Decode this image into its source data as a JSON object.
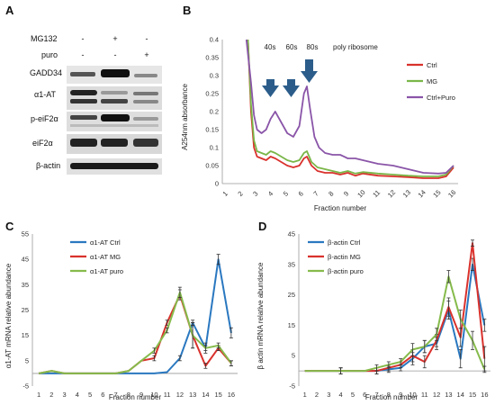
{
  "panels": {
    "a": "A",
    "b": "B",
    "c": "C",
    "d": "D"
  },
  "colors": {
    "ctrl": "#d9312c",
    "mg": "#7ab648",
    "puro": "#8a55a8",
    "blue": "#2a78c0",
    "red": "#d9312c",
    "green": "#86bb4c",
    "arrow": "#2c5d8a"
  },
  "blot": {
    "treatments": [
      {
        "name": "MG132",
        "signs": [
          "-",
          "+",
          "-"
        ]
      },
      {
        "name": "puro",
        "signs": [
          "-",
          "-",
          "+"
        ]
      }
    ],
    "bands": [
      "GADD34",
      "α1-AT",
      "p-eiF2α",
      "eiF2α",
      "β-actin"
    ]
  },
  "chart_data": [
    {
      "panel": "B",
      "type": "line",
      "ylabel": "A254nm absorbance",
      "xlabel": "Fraction number",
      "ylim": [
        0,
        0.4
      ],
      "yticks": [
        0,
        0.05,
        0.1,
        0.15,
        0.2,
        0.25,
        0.3,
        0.35,
        0.4
      ],
      "xticks": [
        "1",
        "2",
        "3",
        "4",
        "5",
        "6",
        "7",
        "8",
        "9",
        "10",
        "11",
        "12",
        "13",
        "14",
        "15",
        "16"
      ],
      "annotations": [
        "40s",
        "60s",
        "80s",
        "poly ribosome"
      ],
      "legend_position": "top-right",
      "series": [
        {
          "name": "Ctrl",
          "x": [
            2.4,
            2.6,
            2.8,
            3,
            3.3,
            3.6,
            3.9,
            4.2,
            4.6,
            5,
            5.4,
            5.8,
            6.1,
            6.3,
            6.6,
            7,
            7.5,
            8,
            8.5,
            9,
            9.5,
            10,
            11,
            12,
            13,
            14,
            15,
            15.5,
            16
          ],
          "y": [
            0.4,
            0.2,
            0.1,
            0.075,
            0.07,
            0.065,
            0.075,
            0.07,
            0.06,
            0.05,
            0.045,
            0.05,
            0.07,
            0.075,
            0.05,
            0.035,
            0.03,
            0.03,
            0.025,
            0.03,
            0.022,
            0.028,
            0.022,
            0.02,
            0.018,
            0.015,
            0.015,
            0.02,
            0.045
          ]
        },
        {
          "name": "MG",
          "x": [
            2.4,
            2.6,
            2.8,
            3,
            3.3,
            3.6,
            3.9,
            4.2,
            4.6,
            5,
            5.4,
            5.8,
            6.1,
            6.3,
            6.6,
            7,
            7.5,
            8,
            8.5,
            9,
            9.5,
            10,
            11,
            12,
            13,
            14,
            15,
            15.5,
            16
          ],
          "y": [
            0.4,
            0.22,
            0.12,
            0.09,
            0.085,
            0.08,
            0.09,
            0.085,
            0.075,
            0.065,
            0.06,
            0.065,
            0.085,
            0.09,
            0.06,
            0.045,
            0.04,
            0.035,
            0.03,
            0.035,
            0.028,
            0.032,
            0.028,
            0.025,
            0.022,
            0.02,
            0.02,
            0.025,
            0.05
          ]
        },
        {
          "name": "Ctrl+Puro",
          "x": [
            2.3,
            2.6,
            2.8,
            3,
            3.3,
            3.6,
            3.9,
            4.2,
            4.6,
            5,
            5.4,
            5.8,
            6.1,
            6.3,
            6.5,
            6.8,
            7.1,
            7.5,
            8,
            8.5,
            9,
            9.5,
            10,
            11,
            12,
            13,
            14,
            15,
            15.5,
            16
          ],
          "y": [
            0.4,
            0.28,
            0.19,
            0.15,
            0.14,
            0.15,
            0.18,
            0.2,
            0.17,
            0.14,
            0.13,
            0.16,
            0.25,
            0.27,
            0.21,
            0.13,
            0.1,
            0.085,
            0.08,
            0.08,
            0.07,
            0.07,
            0.065,
            0.055,
            0.05,
            0.04,
            0.03,
            0.028,
            0.03,
            0.05
          ]
        }
      ]
    },
    {
      "panel": "C",
      "type": "line",
      "ylabel": "α1-AT mRNA relative abundance",
      "xlabel": "Fraction number",
      "ylim": [
        -5,
        55
      ],
      "yticks": [
        -5,
        5,
        15,
        25,
        35,
        45,
        55
      ],
      "xticks": [
        "1",
        "2",
        "3",
        "4",
        "5",
        "6",
        "7",
        "8",
        "9",
        "10",
        "11",
        "12",
        "13",
        "14",
        "15",
        "16"
      ],
      "legend_position": "top-left",
      "series": [
        {
          "name": "α1-AT Ctrl",
          "values": [
            0,
            0,
            0,
            0,
            0,
            0,
            0,
            0,
            0,
            0,
            0.5,
            6,
            20,
            10,
            45,
            16
          ],
          "errors": [
            0,
            0,
            0,
            0,
            0,
            0,
            0,
            0,
            0,
            0,
            0,
            1,
            1,
            2,
            2,
            2
          ]
        },
        {
          "name": "α1-AT MG",
          "values": [
            0,
            1,
            0,
            0,
            0,
            0,
            0,
            1,
            5,
            6,
            20,
            31,
            15,
            3,
            10,
            4
          ],
          "errors": [
            0,
            0,
            0,
            0,
            0,
            0,
            0,
            0,
            0,
            1,
            1,
            2,
            5,
            1,
            1,
            1
          ]
        },
        {
          "name": "α1-AT puro",
          "values": [
            0,
            1,
            0,
            0,
            0,
            0,
            0,
            1,
            5,
            9,
            17,
            32,
            15,
            10,
            11,
            4
          ],
          "errors": [
            0,
            0,
            0,
            0,
            0,
            0,
            0,
            0,
            0,
            1,
            1,
            2,
            5,
            1,
            1,
            1
          ]
        }
      ]
    },
    {
      "panel": "D",
      "type": "line",
      "ylabel": "β actin mRNA relative abundance",
      "xlabel": "Fraction number",
      "ylim": [
        -5,
        45
      ],
      "yticks": [
        -5,
        5,
        15,
        25,
        35,
        45
      ],
      "xticks": [
        "1",
        "2",
        "3",
        "4",
        "5",
        "6",
        "7",
        "8",
        "9",
        "10",
        "11",
        "12",
        "13",
        "14",
        "15",
        "16"
      ],
      "legend_position": "top-left",
      "series": [
        {
          "name": "β-actin Ctrl",
          "values": [
            0,
            0,
            0,
            0,
            0,
            0,
            0,
            0.5,
            1,
            4,
            8,
            9,
            20,
            4,
            35,
            15
          ],
          "errors": [
            0,
            0,
            0,
            1,
            0,
            0,
            1,
            1,
            1,
            2,
            2,
            2,
            3,
            3,
            2,
            2
          ]
        },
        {
          "name": "β-actin MG",
          "values": [
            0,
            0,
            0,
            0,
            0,
            0,
            0,
            1,
            2,
            5,
            3,
            10,
            21,
            11,
            42,
            4
          ],
          "errors": [
            0,
            0,
            0,
            1,
            0,
            0,
            1,
            1,
            1,
            2,
            2,
            2,
            3,
            3,
            1,
            4
          ]
        },
        {
          "name": "β-actin puro",
          "values": [
            0,
            0,
            0,
            0,
            0,
            0,
            1,
            2,
            3,
            7,
            8,
            12,
            31,
            17,
            10,
            0.5
          ],
          "errors": [
            0,
            0,
            0,
            1,
            0,
            0,
            1,
            1,
            1,
            2,
            2,
            2,
            2,
            3,
            3,
            1
          ]
        }
      ]
    }
  ]
}
